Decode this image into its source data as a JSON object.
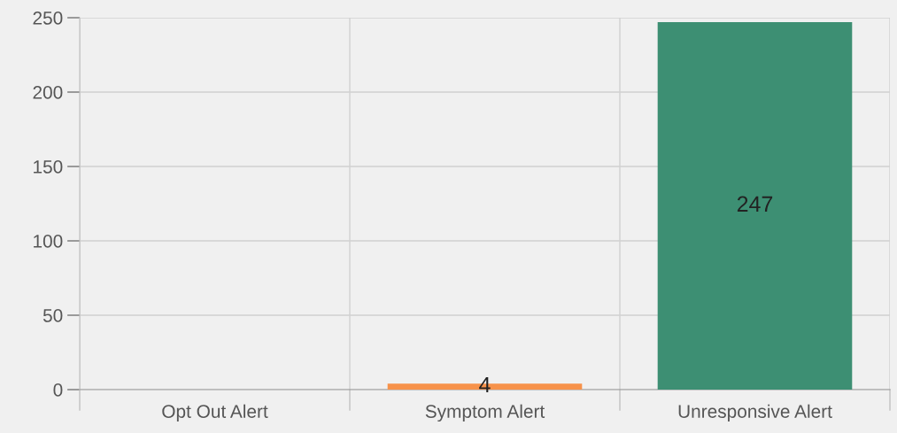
{
  "chart_data": {
    "type": "bar",
    "categories": [
      "Opt Out Alert",
      "Symptom Alert",
      "Unresponsive Alert"
    ],
    "values": [
      0,
      4,
      247
    ],
    "colors": [
      "#36a2eb",
      "#f7924a",
      "#3d8f73"
    ],
    "value_labels": [
      null,
      "4",
      "247"
    ],
    "ylim": [
      0,
      250
    ],
    "yticks": [
      0,
      50,
      100,
      150,
      200,
      250
    ],
    "grid": true,
    "legend": false
  }
}
